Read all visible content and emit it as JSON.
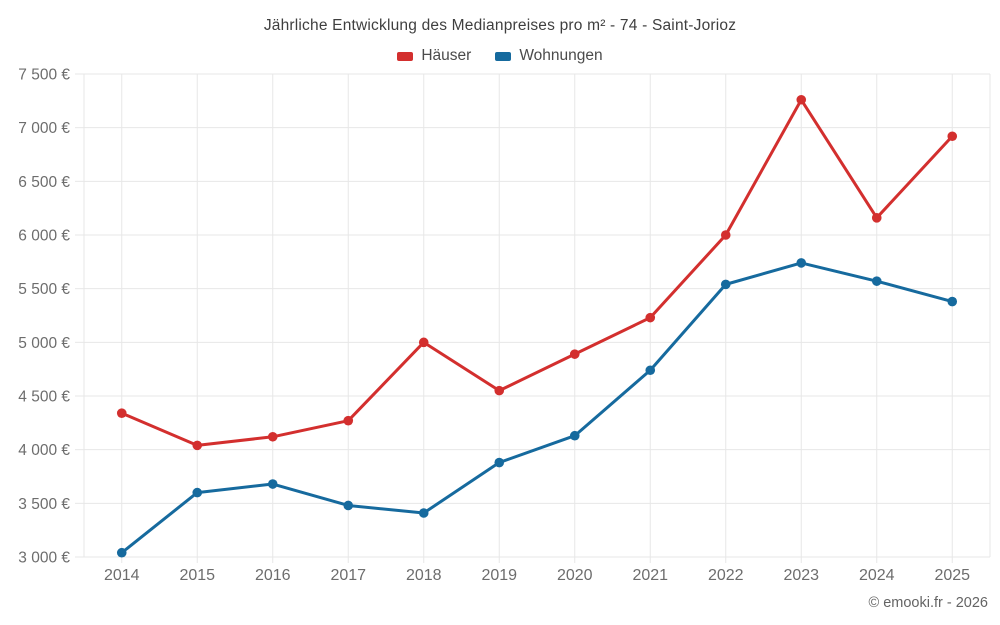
{
  "title": "Jährliche Entwicklung des Medianpreises pro m² - 74 - Saint-Jorioz",
  "legend": {
    "items": [
      {
        "label": "Häuser",
        "color": "#d32f2e"
      },
      {
        "label": "Wohnungen",
        "color": "#166a9e"
      }
    ]
  },
  "footer": {
    "credit": "© emooki.fr - 2026"
  },
  "chart_data": {
    "type": "line",
    "title": "Jährliche Entwicklung des Medianpreises pro m² - 74 - Saint-Jorioz",
    "categories": [
      "2014",
      "2015",
      "2016",
      "2017",
      "2018",
      "2019",
      "2020",
      "2021",
      "2022",
      "2023",
      "2024",
      "2025"
    ],
    "series": [
      {
        "name": "Häuser",
        "color": "#d32f2e",
        "values": [
          4340,
          4040,
          4120,
          4270,
          5000,
          4550,
          4890,
          5230,
          6000,
          7260,
          6160,
          6920
        ]
      },
      {
        "name": "Wohnungen",
        "color": "#166a9e",
        "values": [
          3040,
          3600,
          3680,
          3480,
          3410,
          3880,
          4130,
          4740,
          5540,
          5740,
          5570,
          5380
        ]
      }
    ],
    "xlabel": "",
    "ylabel": "",
    "unit": "€",
    "ylim": [
      3000,
      7500
    ],
    "y_ticks": {
      "values": [
        3000,
        3500,
        4000,
        4500,
        5000,
        5500,
        6000,
        6500,
        7000,
        7500
      ],
      "labels": [
        "3 000 €",
        "3 500 €",
        "4 000 €",
        "4 500 €",
        "5 000 €",
        "5 500 €",
        "6 000 €",
        "6 500 €",
        "7 000 €",
        "7 500 €"
      ]
    },
    "grid": true,
    "legend_position": "top",
    "colors": {
      "grid": "#e7e7e7",
      "axis_text": "#6d6d6d"
    }
  }
}
